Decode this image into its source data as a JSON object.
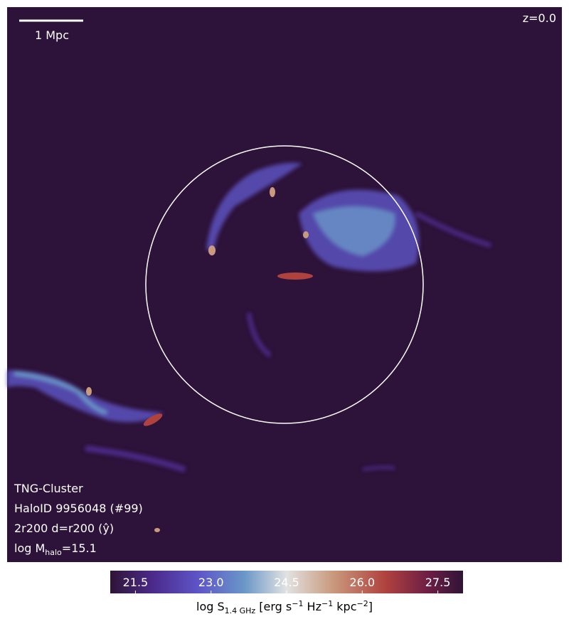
{
  "map": {
    "scale_bar": "1 Mpc",
    "redshift": "z=0.0",
    "info": [
      "TNG-Cluster",
      "HaloID 9956048 (#99)",
      "2r200 d=r200 (ŷ)"
    ],
    "mass": [
      "log M",
      "halo",
      "=15.1"
    ]
  },
  "colorbar": {
    "label": [
      "log S",
      "1.4 GHz",
      " [erg s",
      "−1",
      " Hz",
      "−1",
      " kpc",
      "−2",
      "]"
    ],
    "lim": [
      21,
      28
    ],
    "ticks": [
      21.5,
      {
        "value": 23,
        "label": "23.0"
      },
      24.5,
      {
        "value": 26,
        "label": "26.0"
      },
      27.5
    ]
  }
}
